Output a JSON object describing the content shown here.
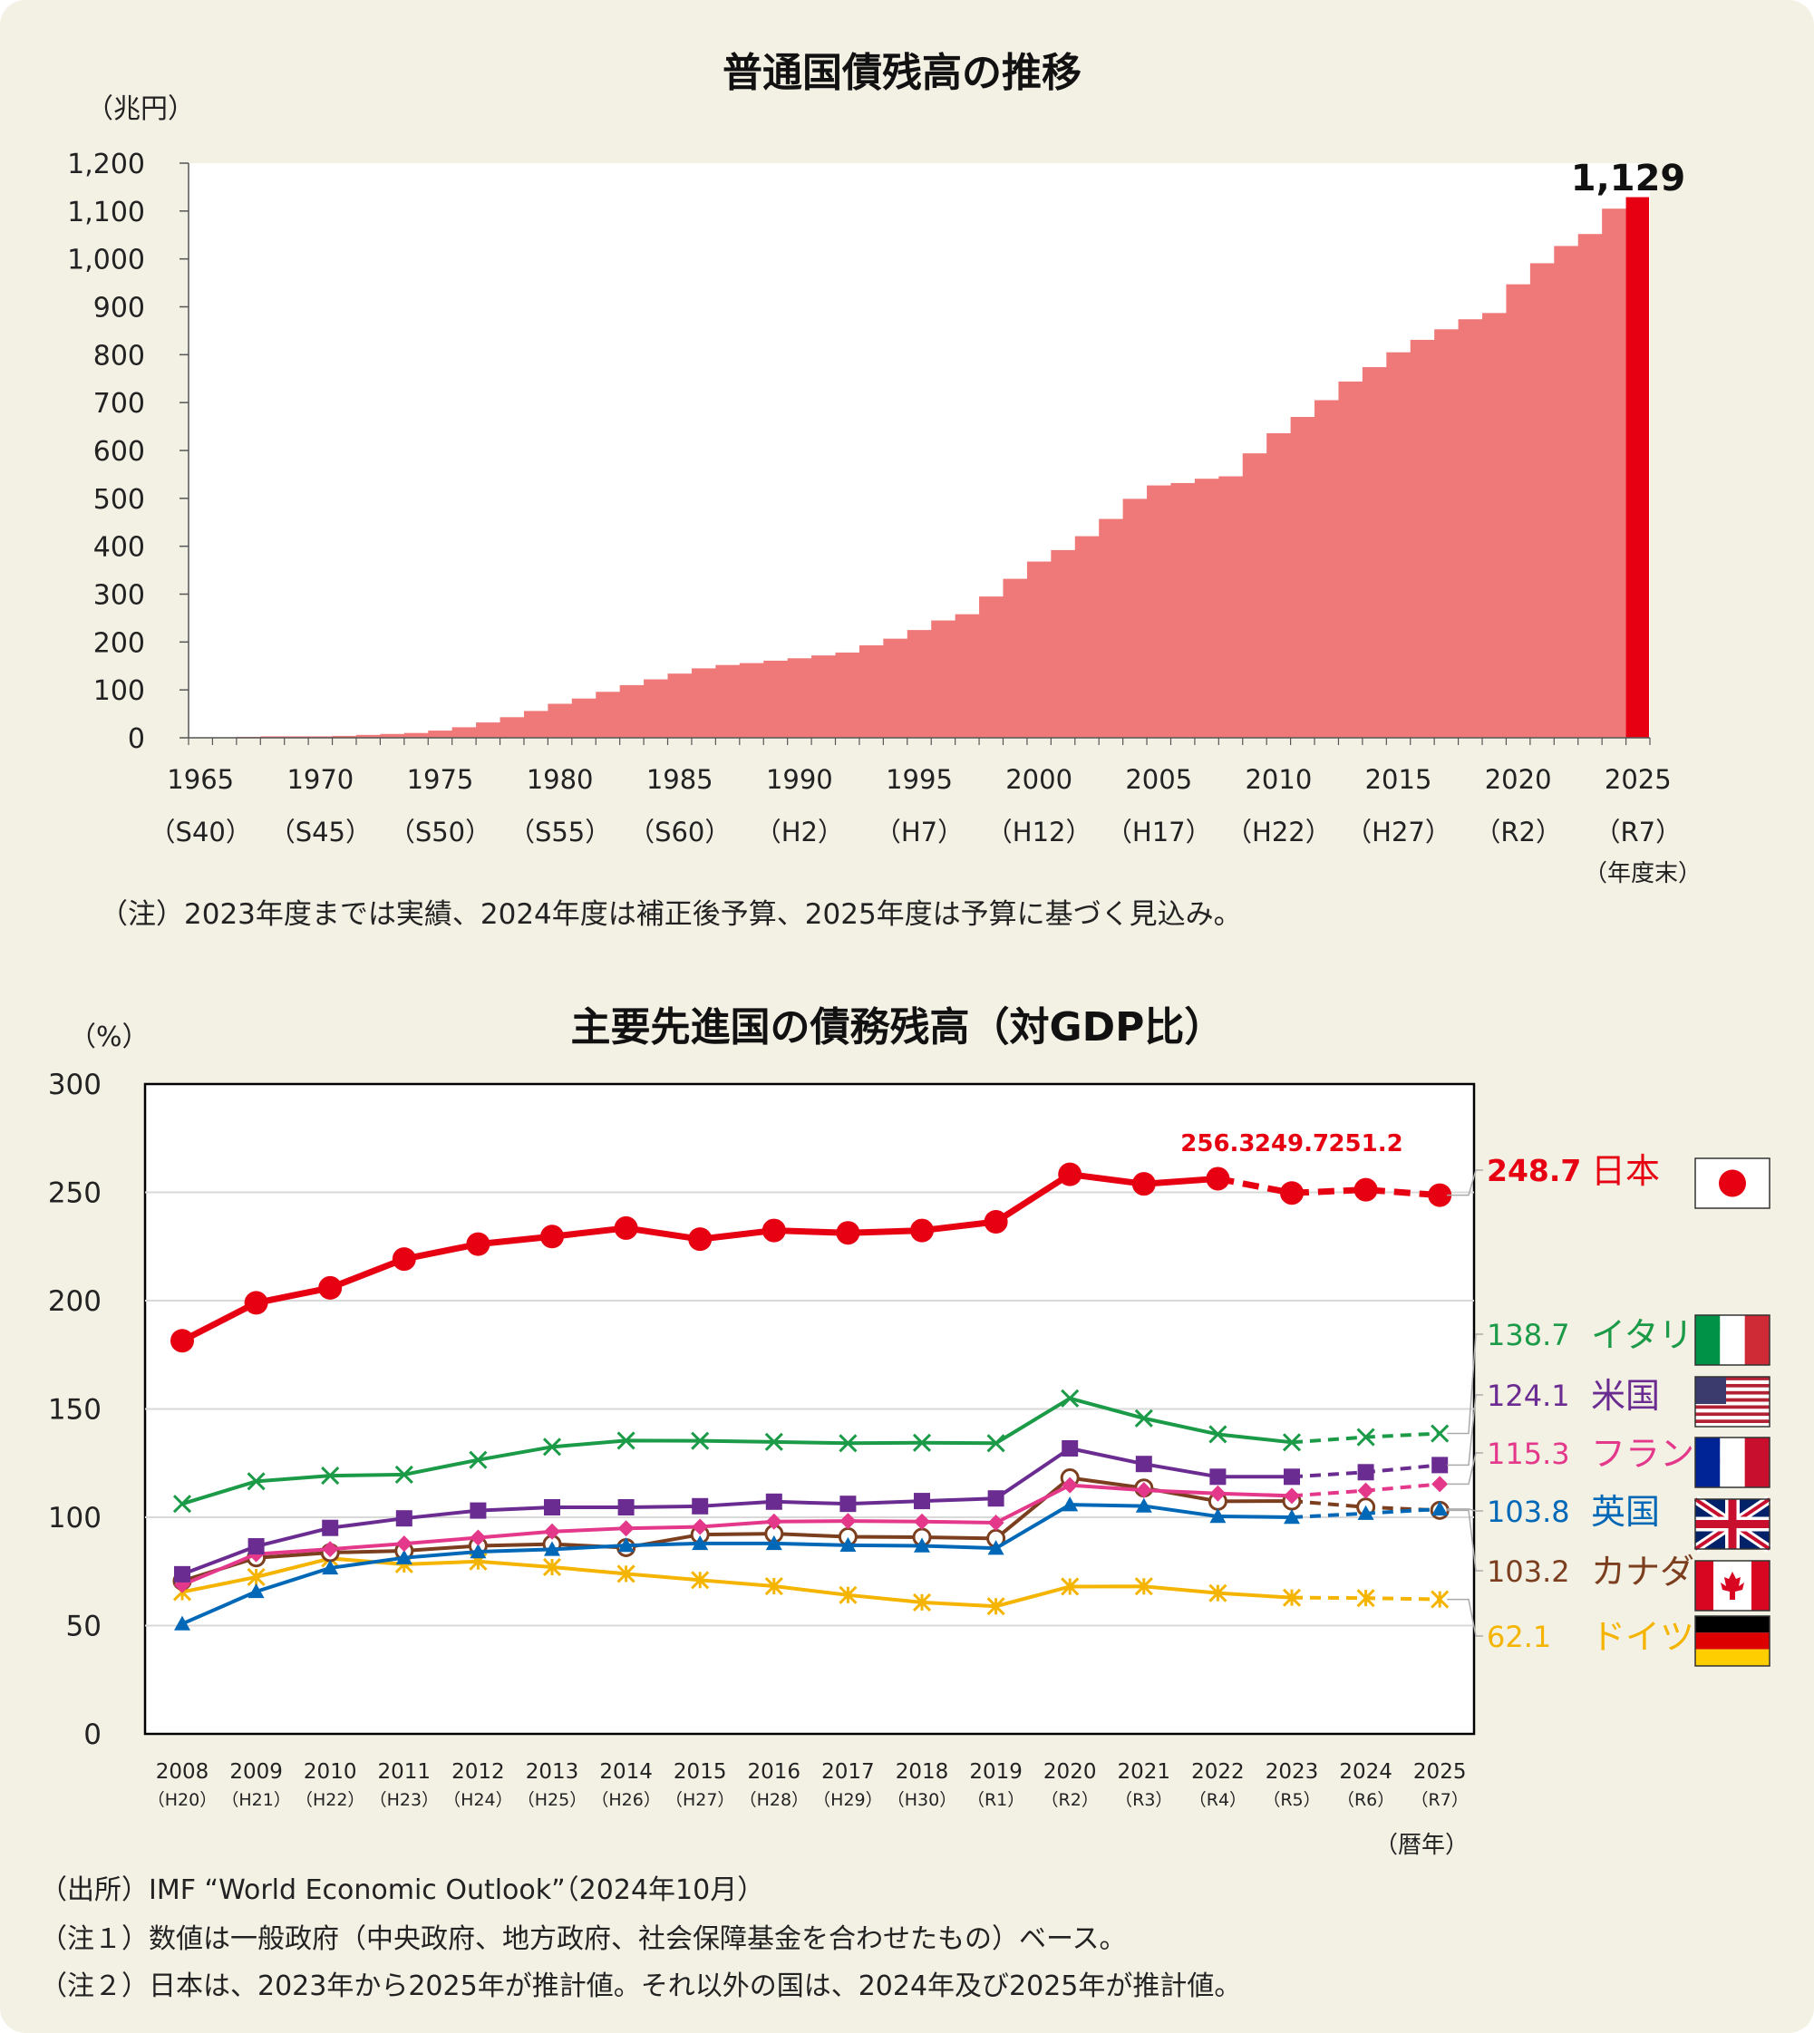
{
  "chart_data": [
    {
      "type": "bar",
      "title": "普通国債残高の推移",
      "ylabel": "（兆円）",
      "xlabel_note": "（年度末）",
      "ylim": [
        0,
        1200
      ],
      "yticks": [
        0,
        100,
        200,
        300,
        400,
        500,
        600,
        700,
        800,
        900,
        "1,000",
        "1,100",
        "1,200"
      ],
      "x_tick_years": [
        "1965",
        "1970",
        "1975",
        "1980",
        "1985",
        "1990",
        "1995",
        "2000",
        "2005",
        "2010",
        "2015",
        "2020",
        "2025"
      ],
      "x_tick_eras": [
        "（S40）",
        "（S45）",
        "（S50）",
        "（S55）",
        "（S60）",
        "（H2）",
        "（H7）",
        "（H12）",
        "（H17）",
        "（H22）",
        "（H27）",
        "（R2）",
        "（R7）"
      ],
      "categories": [
        1965,
        1966,
        1967,
        1968,
        1969,
        1970,
        1971,
        1972,
        1973,
        1974,
        1975,
        1976,
        1977,
        1978,
        1979,
        1980,
        1981,
        1982,
        1983,
        1984,
        1985,
        1986,
        1987,
        1988,
        1989,
        1990,
        1991,
        1992,
        1993,
        1994,
        1995,
        1996,
        1997,
        1998,
        1999,
        2000,
        2001,
        2002,
        2003,
        2004,
        2005,
        2006,
        2007,
        2008,
        2009,
        2010,
        2011,
        2012,
        2013,
        2014,
        2015,
        2016,
        2017,
        2018,
        2019,
        2020,
        2021,
        2022,
        2023,
        2024,
        2025
      ],
      "values": [
        0.2,
        1,
        2,
        3,
        3,
        3,
        4,
        6,
        8,
        10,
        15,
        22,
        32,
        43,
        56,
        71,
        82,
        96,
        110,
        122,
        134,
        145,
        152,
        156,
        161,
        166,
        172,
        178,
        193,
        207,
        225,
        245,
        258,
        295,
        332,
        368,
        392,
        421,
        457,
        499,
        527,
        532,
        541,
        546,
        594,
        636,
        670,
        705,
        744,
        774,
        805,
        831,
        853,
        874,
        887,
        947,
        991,
        1027,
        1052,
        1105,
        1129
      ],
      "highlight_label": "1,129",
      "bar_color": "#ef7878",
      "highlight_color": "#e60012",
      "note": "（注）2023年度までは実績、2024年度は補正後予算、2025年度は予算に基づく見込み。"
    },
    {
      "type": "line",
      "title": "主要先進国の債務残高（対GDP比）",
      "ylabel": "（%）",
      "xlabel_note": "（暦年）",
      "ylim": [
        0,
        300
      ],
      "yticks": [
        0,
        50,
        100,
        150,
        200,
        250,
        300
      ],
      "x": [
        "2008",
        "2009",
        "2010",
        "2011",
        "2012",
        "2013",
        "2014",
        "2015",
        "2016",
        "2017",
        "2018",
        "2019",
        "2020",
        "2021",
        "2022",
        "2023",
        "2024",
        "2025"
      ],
      "x_eras": [
        "（H20）",
        "（H21）",
        "（H22）",
        "（H23）",
        "（H24）",
        "（H25）",
        "（H26）",
        "（H27）",
        "（H28）",
        "（H29）",
        "（H30）",
        "（R1）",
        "（R2）",
        "（R3）",
        "（R4）",
        "（R5）",
        "（R6）",
        "（R7）"
      ],
      "series": [
        {
          "name": "日本",
          "label_value": "248.7",
          "color": "#e60012",
          "marker": "circle",
          "estimate_from": 2022,
          "values": [
            181.5,
            199.0,
            205.9,
            219.2,
            226.1,
            229.6,
            233.5,
            228.4,
            232.4,
            231.3,
            232.4,
            236.4,
            258.3,
            253.9,
            256.3,
            249.7,
            251.2,
            248.7
          ]
        },
        {
          "name": "イタリア",
          "label_value": "138.7",
          "color": "#1b9a47",
          "marker": "x",
          "estimate_from": 2023,
          "values": [
            106.2,
            116.6,
            119.2,
            119.7,
            126.5,
            132.5,
            135.4,
            135.3,
            134.8,
            134.2,
            134.4,
            134.2,
            154.9,
            145.7,
            138.3,
            134.6,
            137.0,
            138.7
          ]
        },
        {
          "name": "米国",
          "label_value": "124.1",
          "color": "#6b2c91",
          "marker": "square",
          "estimate_from": 2023,
          "values": [
            73.7,
            86.6,
            95.1,
            99.5,
            103.1,
            104.6,
            104.6,
            105.1,
            107.2,
            106.2,
            107.5,
            108.7,
            131.8,
            124.6,
            118.7,
            118.7,
            120.8,
            124.1
          ]
        },
        {
          "name": "フランス",
          "label_value": "115.3",
          "color": "#e4388a",
          "marker": "diamond",
          "estimate_from": 2023,
          "values": [
            68.8,
            83.0,
            85.3,
            87.8,
            90.6,
            93.4,
            94.9,
            95.6,
            98.0,
            98.3,
            98.0,
            97.5,
            114.8,
            112.5,
            111.0,
            109.9,
            112.3,
            115.3
          ]
        },
        {
          "name": "英国",
          "label_value": "103.8",
          "color": "#0068b7",
          "marker": "triangle",
          "estimate_from": 2023,
          "values": [
            50.8,
            65.7,
            76.6,
            81.3,
            84.1,
            85.2,
            87.0,
            87.9,
            87.9,
            87.1,
            86.8,
            85.7,
            105.8,
            105.2,
            100.4,
            100.0,
            101.8,
            103.8
          ]
        },
        {
          "name": "カナダ",
          "label_value": "103.2",
          "color": "#7b3f1f",
          "marker": "ring",
          "estimate_from": 2023,
          "values": [
            70.6,
            81.3,
            83.7,
            84.5,
            86.8,
            87.6,
            86.0,
            92.0,
            92.4,
            91.0,
            90.8,
            90.2,
            118.2,
            113.5,
            107.4,
            107.5,
            104.7,
            103.2
          ]
        },
        {
          "name": "ドイツ",
          "label_value": "62.1",
          "color": "#f4b400",
          "marker": "star",
          "estimate_from": 2023,
          "values": [
            65.5,
            72.4,
            81.0,
            78.3,
            79.6,
            77.0,
            73.9,
            71.0,
            68.2,
            64.1,
            60.7,
            58.9,
            68.0,
            68.1,
            65.0,
            62.9,
            62.7,
            62.1
          ]
        }
      ],
      "point_labels": {
        "2022": "256.3",
        "2023": "249.7",
        "2024": "251.2"
      },
      "source": "（出所）IMF “World Economic Outlook”（2024年10月）",
      "note1": "（注１）数値は一般政府（中央政府、地方政府、社会保障基金を合わせたもの）ベース。",
      "note2": "（注２）日本は、2023年から2025年が推計値。それ以外の国は、2024年及び2025年が推計値。"
    }
  ],
  "flags": [
    {
      "country": "日本",
      "icon": "japan-flag-icon"
    },
    {
      "country": "イタリア",
      "icon": "italy-flag-icon"
    },
    {
      "country": "米国",
      "icon": "usa-flag-icon"
    },
    {
      "country": "フランス",
      "icon": "france-flag-icon"
    },
    {
      "country": "英国",
      "icon": "uk-flag-icon"
    },
    {
      "country": "カナダ",
      "icon": "canada-flag-icon"
    },
    {
      "country": "ドイツ",
      "icon": "germany-flag-icon"
    }
  ]
}
